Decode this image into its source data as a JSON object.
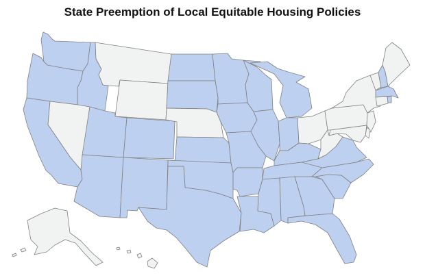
{
  "title": "State Preemption of Local Equitable Housing Policies",
  "colors": {
    "preempted": "#bdd0f0",
    "not_preempted": "#f1f2f2",
    "border": "#7f7f7f"
  },
  "states": [
    {
      "name": "Washington",
      "preempted": true
    },
    {
      "name": "Oregon",
      "preempted": true
    },
    {
      "name": "California",
      "preempted": true
    },
    {
      "name": "Idaho",
      "preempted": true
    },
    {
      "name": "Nevada",
      "preempted": false
    },
    {
      "name": "Montana",
      "preempted": false
    },
    {
      "name": "Wyoming",
      "preempted": false
    },
    {
      "name": "Utah",
      "preempted": true
    },
    {
      "name": "Arizona",
      "preempted": true
    },
    {
      "name": "Colorado",
      "preempted": true
    },
    {
      "name": "New Mexico",
      "preempted": true
    },
    {
      "name": "North Dakota",
      "preempted": true
    },
    {
      "name": "South Dakota",
      "preempted": true
    },
    {
      "name": "Nebraska",
      "preempted": false
    },
    {
      "name": "Kansas",
      "preempted": true
    },
    {
      "name": "Oklahoma",
      "preempted": true
    },
    {
      "name": "Texas",
      "preempted": true
    },
    {
      "name": "Minnesota",
      "preempted": true
    },
    {
      "name": "Iowa",
      "preempted": true
    },
    {
      "name": "Missouri",
      "preempted": true
    },
    {
      "name": "Arkansas",
      "preempted": true
    },
    {
      "name": "Louisiana",
      "preempted": true
    },
    {
      "name": "Wisconsin",
      "preempted": true
    },
    {
      "name": "Illinois",
      "preempted": true
    },
    {
      "name": "Michigan",
      "preempted": true
    },
    {
      "name": "Indiana",
      "preempted": true
    },
    {
      "name": "Ohio",
      "preempted": false
    },
    {
      "name": "Kentucky",
      "preempted": true
    },
    {
      "name": "Tennessee",
      "preempted": true
    },
    {
      "name": "Mississippi",
      "preempted": true
    },
    {
      "name": "Alabama",
      "preempted": true
    },
    {
      "name": "Georgia",
      "preempted": true
    },
    {
      "name": "Florida",
      "preempted": true
    },
    {
      "name": "South Carolina",
      "preempted": true
    },
    {
      "name": "North Carolina",
      "preempted": true
    },
    {
      "name": "Virginia",
      "preempted": true
    },
    {
      "name": "West Virginia",
      "preempted": false
    },
    {
      "name": "Pennsylvania",
      "preempted": false
    },
    {
      "name": "New York",
      "preempted": false
    },
    {
      "name": "Vermont",
      "preempted": false
    },
    {
      "name": "New Hampshire",
      "preempted": true
    },
    {
      "name": "Maine",
      "preempted": false
    },
    {
      "name": "Massachusetts",
      "preempted": true
    },
    {
      "name": "Rhode Island",
      "preempted": true
    },
    {
      "name": "Connecticut",
      "preempted": false
    },
    {
      "name": "New Jersey",
      "preempted": false
    },
    {
      "name": "Delaware",
      "preempted": false
    },
    {
      "name": "Maryland",
      "preempted": false
    },
    {
      "name": "Alaska",
      "preempted": false
    },
    {
      "name": "Hawaii",
      "preempted": false
    }
  ]
}
